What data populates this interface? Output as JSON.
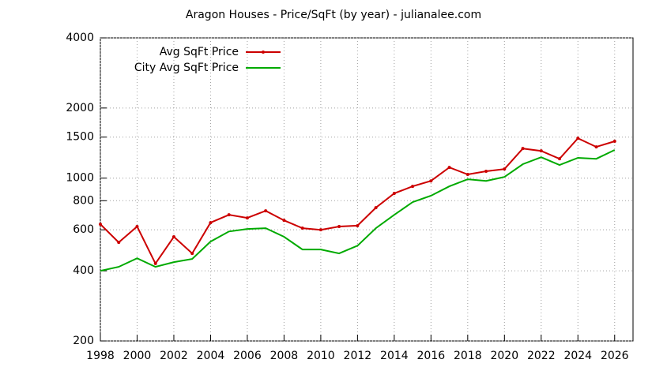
{
  "chart_data": {
    "type": "line",
    "title": "Aragon Houses - Price/SqFt (by year) - julianalee.com",
    "x": [
      1998,
      1999,
      2000,
      2001,
      2002,
      2003,
      2004,
      2005,
      2006,
      2007,
      2008,
      2009,
      2010,
      2011,
      2012,
      2013,
      2014,
      2015,
      2016,
      2017,
      2018,
      2019,
      2020,
      2021,
      2022,
      2023,
      2024,
      2025,
      2026
    ],
    "series": [
      {
        "name": "Avg SqFt Price",
        "color": "#cc0000",
        "markers": true,
        "values": [
          634,
          530,
          620,
          430,
          560,
          475,
          644,
          696,
          675,
          724,
          659,
          610,
          600,
          620,
          625,
          747,
          860,
          922,
          973,
          1112,
          1037,
          1070,
          1094,
          1340,
          1309,
          1211,
          1483,
          1362,
          1440
        ]
      },
      {
        "name": "City Avg SqFt Price",
        "color": "#00aa00",
        "markers": false,
        "values": [
          400,
          416,
          453,
          416,
          436,
          450,
          534,
          590,
          605,
          610,
          560,
          494,
          494,
          475,
          513,
          610,
          696,
          789,
          840,
          922,
          989,
          973,
          1012,
          1148,
          1230,
          1138,
          1222,
          1211,
          1321
        ]
      }
    ],
    "xlim": [
      1998,
      2027
    ],
    "xticks": [
      1998,
      2000,
      2002,
      2004,
      2006,
      2008,
      2010,
      2012,
      2014,
      2016,
      2018,
      2020,
      2022,
      2024,
      2026
    ],
    "ylim": [
      200,
      4000
    ],
    "yticks": [
      200,
      400,
      600,
      800,
      1000,
      1500,
      2000,
      4000
    ],
    "log_y": true,
    "grid": true,
    "legend": "top-left"
  }
}
